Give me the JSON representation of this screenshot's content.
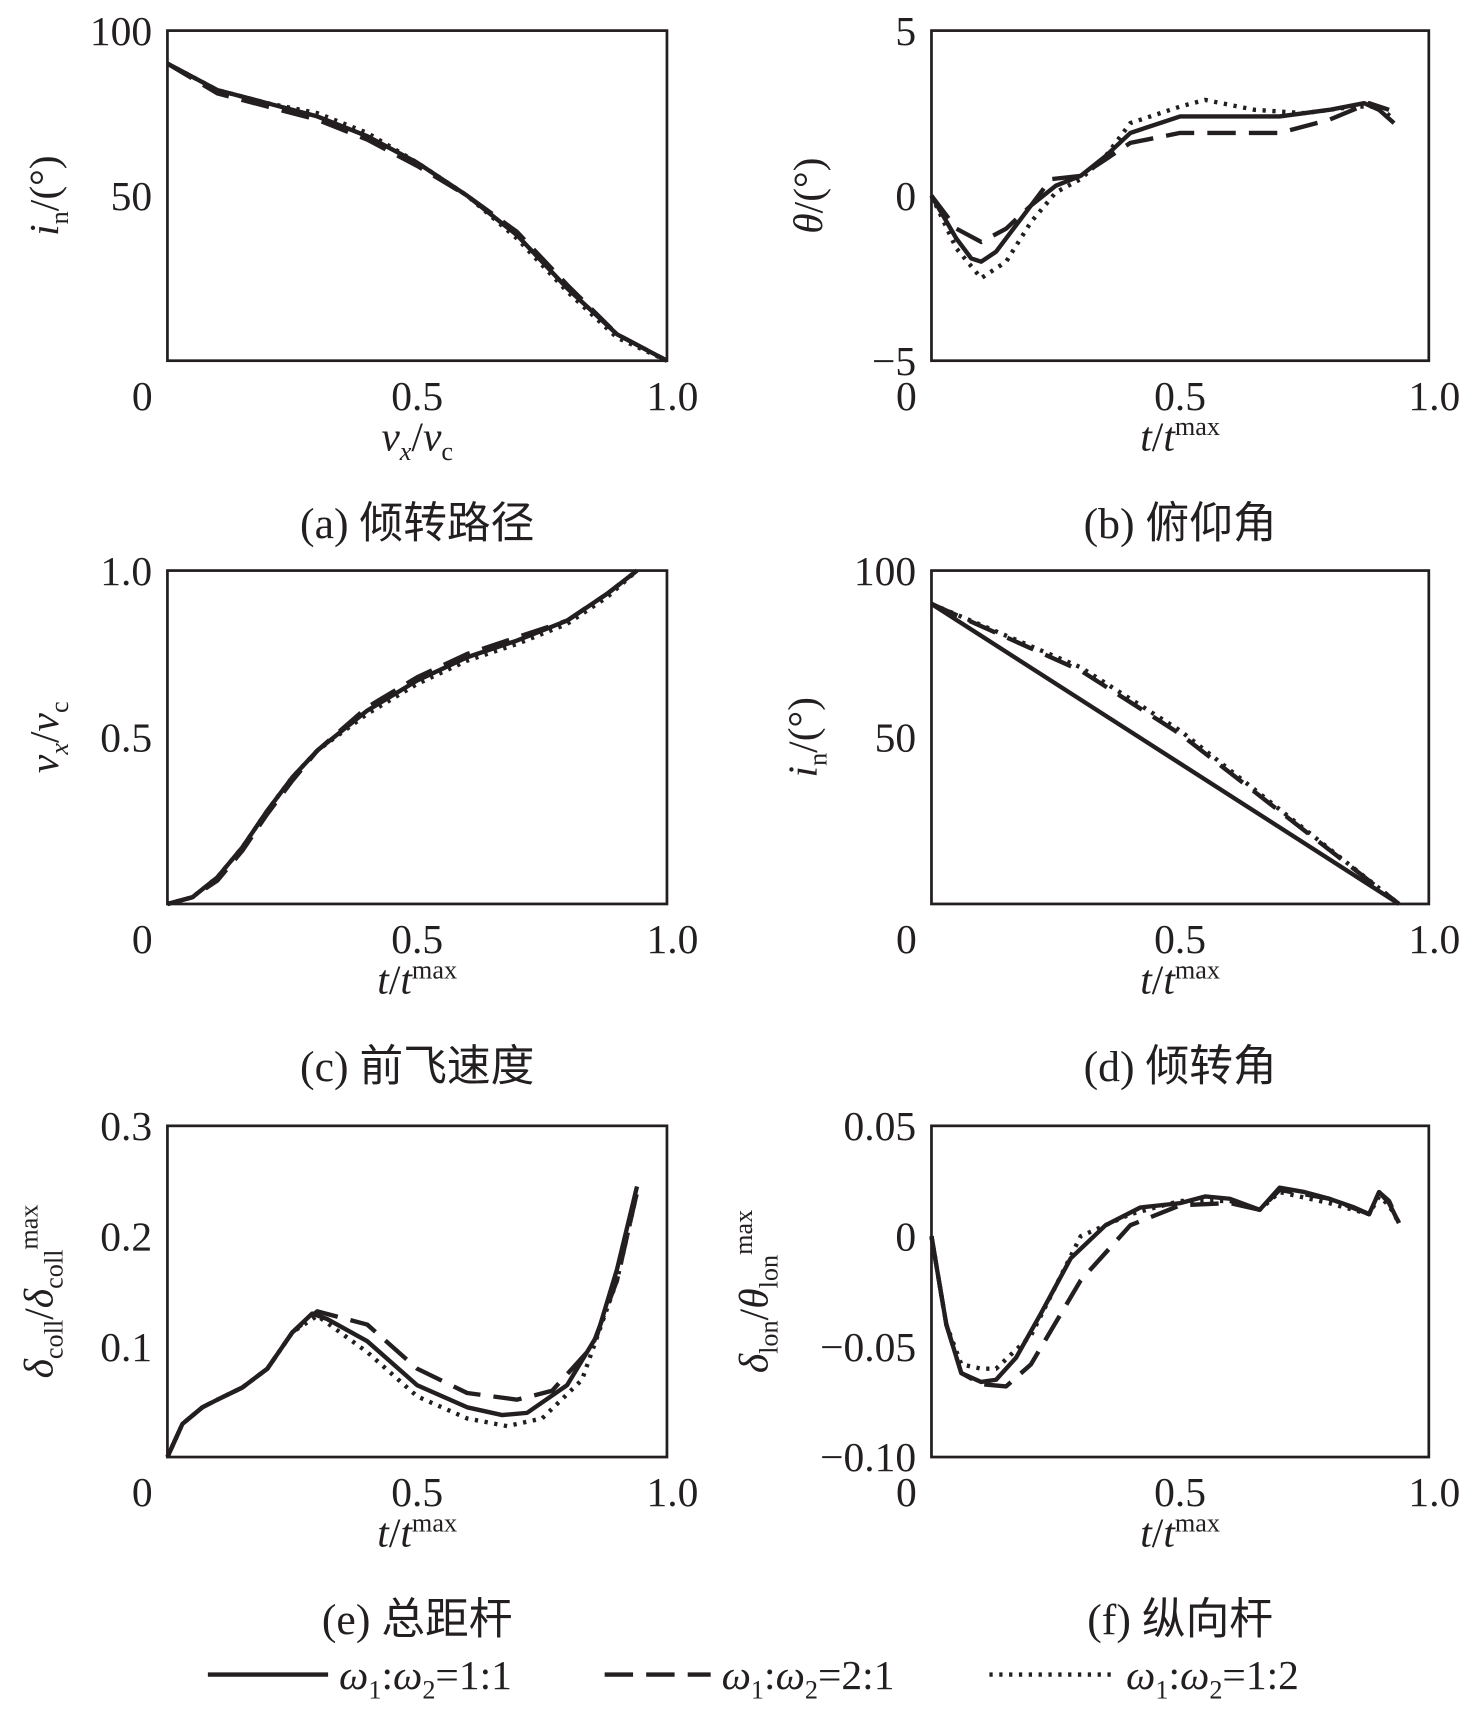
{
  "chart_data": [
    {
      "id": "a",
      "type": "line",
      "caption": "(a) 倾转路径",
      "xlim": [
        0,
        1
      ],
      "ylim": [
        0,
        100
      ],
      "xticks": [
        "0",
        "0.5",
        "1.0"
      ],
      "yticks": [
        {
          "v": 100,
          "l": "100"
        },
        {
          "v": 50,
          "l": "50"
        }
      ],
      "xlabel": [
        {
          "t": "v",
          "i": true
        },
        {
          "t": "x",
          "i": true,
          "sub": true
        },
        {
          "t": "/"
        },
        {
          "t": "v",
          "i": true
        },
        {
          "t": "c",
          "sub": true
        }
      ],
      "ylabel": [
        {
          "t": "i",
          "i": true
        },
        {
          "t": "n",
          "sub": true
        },
        {
          "t": "/(°)"
        }
      ],
      "series": [
        {
          "style": "solid",
          "x": [
            0,
            0.1,
            0.2,
            0.3,
            0.4,
            0.5,
            0.6,
            0.7,
            0.8,
            0.9,
            1
          ],
          "y": [
            90,
            82,
            78,
            74,
            68,
            60,
            50,
            38,
            22,
            8,
            0
          ]
        },
        {
          "style": "dashed",
          "x": [
            0,
            0.1,
            0.2,
            0.3,
            0.4,
            0.5,
            0.6,
            0.7,
            0.8,
            0.9,
            1
          ],
          "y": [
            90,
            81,
            77,
            73,
            67,
            59,
            50,
            39,
            23,
            8,
            0
          ]
        },
        {
          "style": "dotted",
          "x": [
            0,
            0.1,
            0.2,
            0.3,
            0.4,
            0.5,
            0.6,
            0.7,
            0.8,
            0.9,
            1
          ],
          "y": [
            90,
            82,
            78,
            75,
            69,
            60,
            50,
            37,
            21,
            7,
            0
          ]
        }
      ]
    },
    {
      "id": "b",
      "type": "line",
      "caption": "(b) 俯仰角",
      "xlim": [
        0,
        1
      ],
      "ylim": [
        -5,
        5
      ],
      "xticks": [
        "0",
        "0.5",
        "1.0"
      ],
      "yticks": [
        {
          "v": 5,
          "l": "5"
        },
        {
          "v": 0,
          "l": "0"
        },
        {
          "v": -5,
          "l": "−5"
        }
      ],
      "xlabel": [
        {
          "t": "t",
          "i": true
        },
        {
          "t": "/"
        },
        {
          "t": "t",
          "i": true
        },
        {
          "t": "max",
          "sup": true
        }
      ],
      "ylabel": [
        {
          "t": "θ",
          "i": true
        },
        {
          "t": "/(°)"
        }
      ],
      "series": [
        {
          "style": "solid",
          "x": [
            0,
            0.05,
            0.08,
            0.1,
            0.13,
            0.2,
            0.25,
            0.3,
            0.35,
            0.4,
            0.5,
            0.6,
            0.7,
            0.8,
            0.87,
            0.9,
            0.93
          ],
          "y": [
            0,
            -1.3,
            -1.9,
            -2,
            -1.7,
            -0.3,
            0.3,
            0.6,
            1.2,
            1.9,
            2.4,
            2.4,
            2.4,
            2.6,
            2.8,
            2.6,
            2.2
          ]
        },
        {
          "style": "dashed",
          "x": [
            0,
            0.05,
            0.1,
            0.15,
            0.2,
            0.24,
            0.3,
            0.35,
            0.4,
            0.5,
            0.7,
            0.8,
            0.88,
            0.92
          ],
          "y": [
            0,
            -1,
            -1.4,
            -1,
            -0.3,
            0.5,
            0.6,
            1.1,
            1.6,
            1.9,
            1.9,
            2.3,
            2.8,
            2.6
          ]
        },
        {
          "style": "dotted",
          "x": [
            0,
            0.05,
            0.1,
            0.15,
            0.2,
            0.25,
            0.3,
            0.35,
            0.4,
            0.5,
            0.55,
            0.65,
            0.75,
            0.85,
            0.9,
            0.93
          ],
          "y": [
            0,
            -1.6,
            -2.5,
            -2,
            -0.8,
            0.1,
            0.5,
            1.2,
            2.2,
            2.7,
            2.9,
            2.6,
            2.5,
            2.7,
            2.7,
            2.3
          ]
        }
      ]
    },
    {
      "id": "c",
      "type": "line",
      "caption": "(c) 前飞速度",
      "xlim": [
        0,
        1
      ],
      "ylim": [
        0,
        1
      ],
      "xticks": [
        "0",
        "0.5",
        "1.0"
      ],
      "yticks": [
        {
          "v": 1,
          "l": "1.0"
        },
        {
          "v": 0.5,
          "l": "0.5"
        }
      ],
      "xlabel": [
        {
          "t": "t",
          "i": true
        },
        {
          "t": "/"
        },
        {
          "t": "t",
          "i": true
        },
        {
          "t": "max",
          "sup": true
        }
      ],
      "ylabel": [
        {
          "t": "v",
          "i": true
        },
        {
          "t": "x",
          "i": true,
          "sub": true
        },
        {
          "t": "/"
        },
        {
          "t": "v",
          "i": true
        },
        {
          "t": "c",
          "sub": true
        }
      ],
      "series": [
        {
          "style": "solid",
          "x": [
            0,
            0.05,
            0.1,
            0.15,
            0.2,
            0.25,
            0.3,
            0.4,
            0.5,
            0.6,
            0.7,
            0.8,
            0.88,
            0.94
          ],
          "y": [
            0,
            0.02,
            0.08,
            0.17,
            0.28,
            0.38,
            0.46,
            0.58,
            0.67,
            0.74,
            0.79,
            0.85,
            0.93,
            1
          ]
        },
        {
          "style": "dashed",
          "x": [
            0,
            0.05,
            0.1,
            0.15,
            0.2,
            0.25,
            0.3,
            0.4,
            0.5,
            0.6,
            0.7,
            0.8,
            0.88,
            0.94
          ],
          "y": [
            0,
            0.02,
            0.07,
            0.16,
            0.27,
            0.37,
            0.46,
            0.59,
            0.68,
            0.75,
            0.8,
            0.85,
            0.93,
            1
          ]
        },
        {
          "style": "dotted",
          "x": [
            0,
            0.05,
            0.1,
            0.15,
            0.2,
            0.25,
            0.3,
            0.4,
            0.5,
            0.6,
            0.7,
            0.8,
            0.88,
            0.94
          ],
          "y": [
            0,
            0.02,
            0.08,
            0.17,
            0.28,
            0.38,
            0.46,
            0.57,
            0.66,
            0.73,
            0.78,
            0.84,
            0.92,
            1
          ]
        }
      ]
    },
    {
      "id": "d",
      "type": "line",
      "caption": "(d) 倾转角",
      "xlim": [
        0,
        1
      ],
      "ylim": [
        0,
        100
      ],
      "xticks": [
        "0",
        "0.5",
        "1.0"
      ],
      "yticks": [
        {
          "v": 100,
          "l": "100"
        },
        {
          "v": 50,
          "l": "50"
        }
      ],
      "xlabel": [
        {
          "t": "t",
          "i": true
        },
        {
          "t": "/"
        },
        {
          "t": "t",
          "i": true
        },
        {
          "t": "max",
          "sup": true
        }
      ],
      "ylabel": [
        {
          "t": "i",
          "i": true
        },
        {
          "t": "n",
          "sub": true
        },
        {
          "t": "/(°)"
        }
      ],
      "series": [
        {
          "style": "solid",
          "x": [
            0,
            0.94
          ],
          "y": [
            90,
            0
          ]
        },
        {
          "style": "dashed",
          "x": [
            0,
            0.3,
            0.5,
            0.94
          ],
          "y": [
            90,
            70,
            51,
            0
          ]
        },
        {
          "style": "dotted",
          "x": [
            0,
            0.3,
            0.5,
            0.94
          ],
          "y": [
            90,
            71,
            52,
            0
          ]
        }
      ]
    },
    {
      "id": "e",
      "type": "line",
      "caption": "(e) 总距杆",
      "xlim": [
        0,
        1
      ],
      "ylim": [
        0,
        0.3
      ],
      "xticks": [
        "0",
        "0.5",
        "1.0"
      ],
      "yticks": [
        {
          "v": 0.3,
          "l": "0.3"
        },
        {
          "v": 0.2,
          "l": "0.2"
        },
        {
          "v": 0.1,
          "l": "0.1"
        }
      ],
      "xlabel": [
        {
          "t": "t",
          "i": true
        },
        {
          "t": "/"
        },
        {
          "t": "t",
          "i": true
        },
        {
          "t": "max",
          "sup": true
        }
      ],
      "ylabel": [
        {
          "t": "δ",
          "i": true
        },
        {
          "t": "coll",
          "sub": true
        },
        {
          "t": "/"
        },
        {
          "t": "δ",
          "i": true
        },
        {
          "t": "coll",
          "sub": true
        },
        {
          "t": "max",
          "sup": true
        }
      ],
      "series": [
        {
          "style": "solid",
          "x": [
            0,
            0.03,
            0.07,
            0.1,
            0.15,
            0.2,
            0.25,
            0.29,
            0.32,
            0.4,
            0.5,
            0.6,
            0.67,
            0.72,
            0.8,
            0.86,
            0.9,
            0.94
          ],
          "y": [
            0,
            0.03,
            0.045,
            0.052,
            0.063,
            0.08,
            0.113,
            0.13,
            0.125,
            0.105,
            0.065,
            0.045,
            0.038,
            0.04,
            0.065,
            0.11,
            0.17,
            0.245
          ]
        },
        {
          "style": "dashed",
          "x": [
            0,
            0.03,
            0.07,
            0.1,
            0.15,
            0.2,
            0.25,
            0.3,
            0.4,
            0.5,
            0.6,
            0.7,
            0.77,
            0.85,
            0.9,
            0.94
          ],
          "y": [
            0,
            0.03,
            0.045,
            0.052,
            0.063,
            0.08,
            0.113,
            0.132,
            0.12,
            0.08,
            0.058,
            0.052,
            0.06,
            0.1,
            0.16,
            0.24
          ]
        },
        {
          "style": "dotted",
          "x": [
            0,
            0.03,
            0.07,
            0.1,
            0.15,
            0.2,
            0.25,
            0.3,
            0.4,
            0.5,
            0.6,
            0.68,
            0.75,
            0.83,
            0.9,
            0.94
          ],
          "y": [
            0,
            0.03,
            0.045,
            0.052,
            0.063,
            0.08,
            0.113,
            0.128,
            0.095,
            0.055,
            0.035,
            0.028,
            0.035,
            0.07,
            0.16,
            0.24
          ]
        }
      ]
    },
    {
      "id": "f",
      "type": "line",
      "caption": "(f) 纵向杆",
      "xlim": [
        0,
        1
      ],
      "ylim": [
        -0.1,
        0.05
      ],
      "xticks": [
        "0",
        "0.5",
        "1.0"
      ],
      "yticks": [
        {
          "v": 0.05,
          "l": "0.05"
        },
        {
          "v": 0,
          "l": "0"
        },
        {
          "v": -0.05,
          "l": "−0.05"
        },
        {
          "v": -0.1,
          "l": "−0.10"
        }
      ],
      "xlabel": [
        {
          "t": "t",
          "i": true
        },
        {
          "t": "/"
        },
        {
          "t": "t",
          "i": true
        },
        {
          "t": "max",
          "sup": true
        }
      ],
      "ylabel": [
        {
          "t": "δ",
          "i": true
        },
        {
          "t": "lon",
          "sub": true
        },
        {
          "t": "/"
        },
        {
          "t": "θ",
          "i": true
        },
        {
          "t": "lon",
          "sub": true
        },
        {
          "t": "max",
          "sup": true
        }
      ],
      "series": [
        {
          "style": "solid",
          "x": [
            0,
            0.03,
            0.06,
            0.1,
            0.13,
            0.17,
            0.22,
            0.28,
            0.35,
            0.42,
            0.5,
            0.55,
            0.6,
            0.66,
            0.7,
            0.75,
            0.8,
            0.85,
            0.88,
            0.9,
            0.92,
            0.94
          ],
          "y": [
            0,
            -0.04,
            -0.062,
            -0.066,
            -0.065,
            -0.055,
            -0.035,
            -0.01,
            0.005,
            0.013,
            0.015,
            0.018,
            0.017,
            0.012,
            0.022,
            0.02,
            0.017,
            0.013,
            0.01,
            0.02,
            0.015,
            0.006
          ]
        },
        {
          "style": "dashed",
          "x": [
            0,
            0.03,
            0.06,
            0.1,
            0.15,
            0.2,
            0.3,
            0.4,
            0.5,
            0.6,
            0.66,
            0.7,
            0.8,
            0.88,
            0.9,
            0.92,
            0.94
          ],
          "y": [
            0,
            -0.04,
            -0.062,
            -0.067,
            -0.068,
            -0.058,
            -0.02,
            0.005,
            0.014,
            0.015,
            0.012,
            0.021,
            0.017,
            0.01,
            0.02,
            0.016,
            0.006
          ]
        },
        {
          "style": "dotted",
          "x": [
            0,
            0.03,
            0.06,
            0.1,
            0.13,
            0.2,
            0.3,
            0.4,
            0.5,
            0.6,
            0.66,
            0.7,
            0.8,
            0.88,
            0.9,
            0.92,
            0.94
          ],
          "y": [
            0,
            -0.04,
            -0.058,
            -0.06,
            -0.06,
            -0.045,
            0,
            0.01,
            0.016,
            0.016,
            0.012,
            0.02,
            0.015,
            0.01,
            0.018,
            0.014,
            0.006
          ]
        }
      ]
    }
  ],
  "legend": [
    {
      "style": "solid",
      "label": [
        {
          "t": "ω",
          "i": true
        },
        {
          "t": "1",
          "sub": true
        },
        {
          "t": ":"
        },
        {
          "t": "ω",
          "i": true
        },
        {
          "t": "2",
          "sub": true
        },
        {
          "t": "=1:1"
        }
      ]
    },
    {
      "style": "dashed",
      "label": [
        {
          "t": "ω",
          "i": true
        },
        {
          "t": "1",
          "sub": true
        },
        {
          "t": ":"
        },
        {
          "t": "ω",
          "i": true
        },
        {
          "t": "2",
          "sub": true
        },
        {
          "t": "=2:1"
        }
      ]
    },
    {
      "style": "dotted",
      "label": [
        {
          "t": "ω",
          "i": true
        },
        {
          "t": "1",
          "sub": true
        },
        {
          "t": ":"
        },
        {
          "t": "ω",
          "i": true
        },
        {
          "t": "2",
          "sub": true
        },
        {
          "t": "=1:2"
        }
      ]
    }
  ],
  "colors": {
    "ink": "#231f20"
  }
}
